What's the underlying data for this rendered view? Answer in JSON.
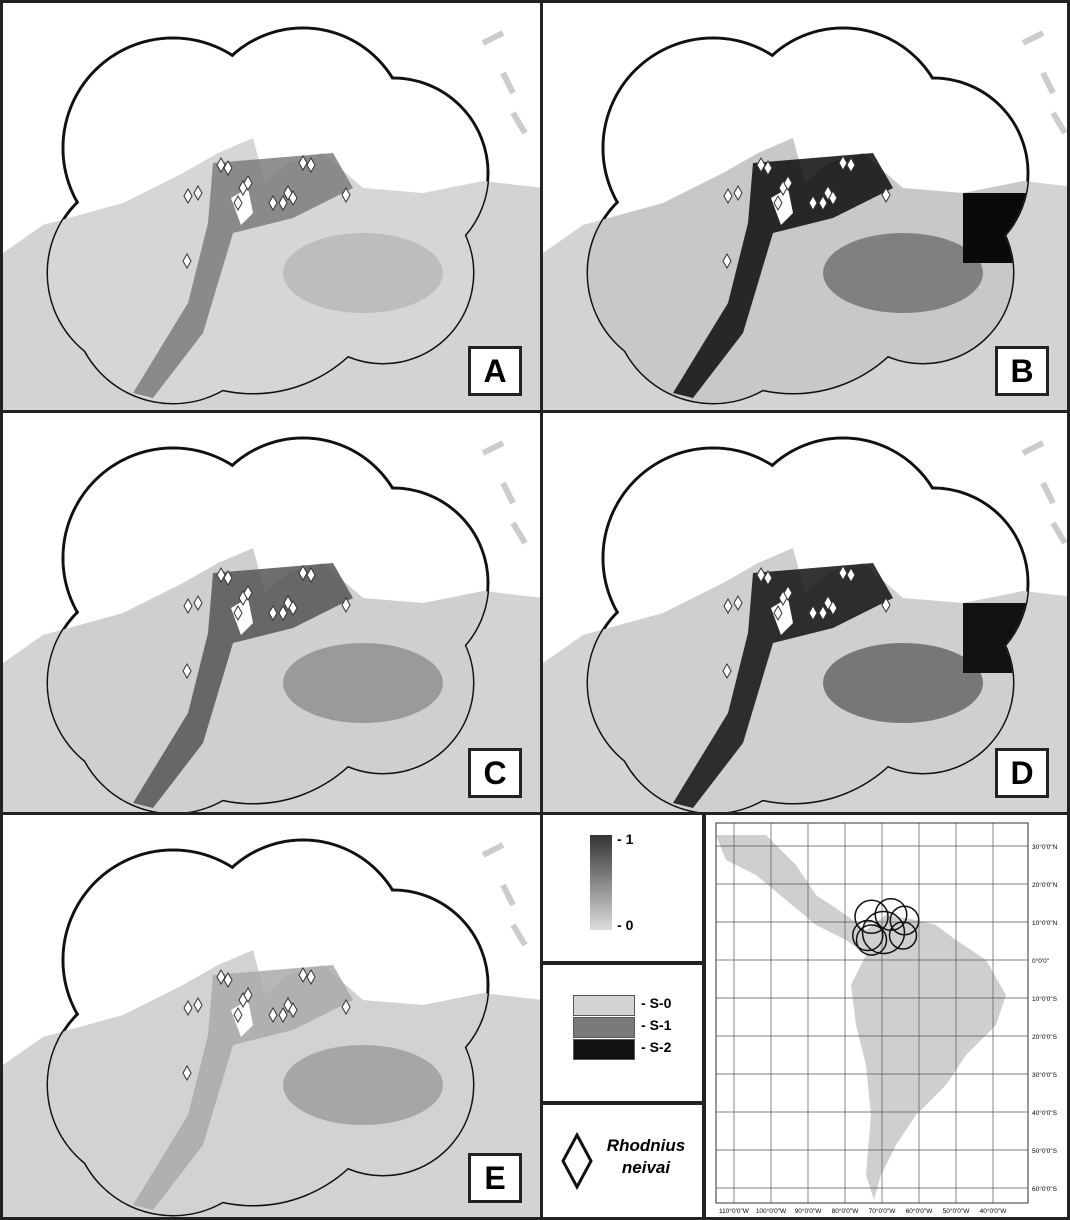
{
  "panels": [
    {
      "label": "A"
    },
    {
      "label": "B"
    },
    {
      "label": "C"
    },
    {
      "label": "D"
    },
    {
      "label": "E"
    }
  ],
  "legend": {
    "continuous": {
      "high": "1",
      "low": "0"
    },
    "classes": [
      {
        "label": "S-0",
        "color": "#d4d4d4"
      },
      {
        "label": "S-1",
        "color": "#7a7a7a"
      },
      {
        "label": "S-2",
        "color": "#111111"
      }
    ],
    "species": "Rhodnius neivai"
  },
  "locator": {
    "lat_labels": [
      "30°0'0\"N",
      "20°0'0\"N",
      "10°0'0\"N",
      "0°0'0\"",
      "10°0'0\"S",
      "20°0'0\"S",
      "30°0'0\"S",
      "40°0'0\"S",
      "50°0'0\"S",
      "60°0'0\"S"
    ],
    "lon_labels": [
      "110°0'0\"W",
      "100°0'0\"W",
      "90°0'0\"W",
      "80°0'0\"W",
      "70°0'0\"W",
      "60°0'0\"W",
      "50°0'0\"W",
      "40°0'0\"W"
    ]
  }
}
